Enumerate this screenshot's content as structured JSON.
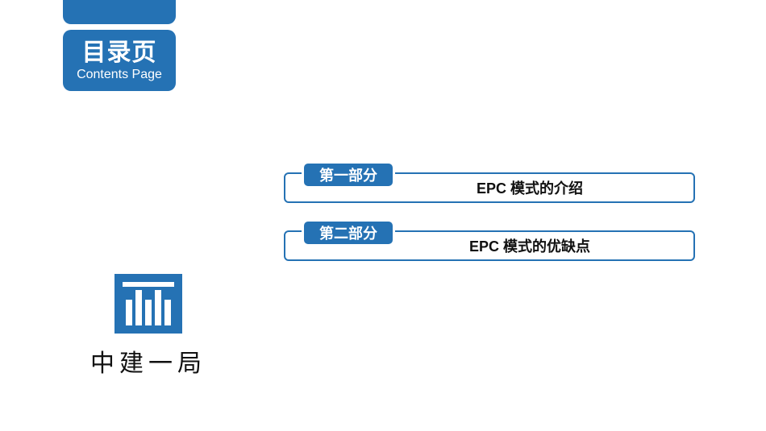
{
  "colors": {
    "primary": "#2572b4",
    "text_dark": "#111111",
    "white": "#ffffff",
    "border": "#2572b4"
  },
  "contents_badge": {
    "zh": "目录页",
    "en": "Contents Page"
  },
  "sections": [
    {
      "tab": "第一部分",
      "title": "EPC 模式的介绍"
    },
    {
      "tab": "第二部分",
      "title": "EPC 模式的优缺点"
    }
  ],
  "logo": {
    "text": "中建一局"
  }
}
